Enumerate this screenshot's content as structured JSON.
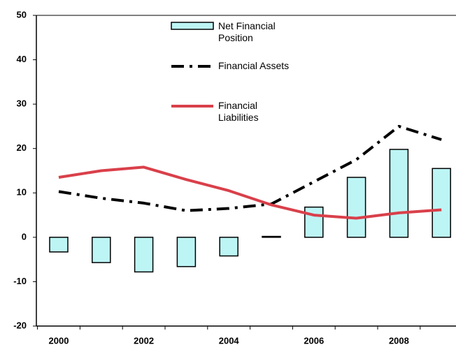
{
  "chart_data": {
    "type": "bar",
    "categories": [
      "2000",
      null,
      "2002",
      null,
      "2004",
      null,
      "2006",
      null,
      "2008",
      null
    ],
    "series": [
      {
        "name": "Net Financial Position",
        "type": "bar",
        "color": "#bdf5f5",
        "values": [
          -3.3,
          -5.7,
          -7.8,
          -6.6,
          -4.2,
          0.2,
          6.8,
          13.5,
          19.8,
          15.5
        ]
      },
      {
        "name": "Financial Assets",
        "type": "line",
        "dash": true,
        "color": "#000000",
        "values": [
          10.3,
          8.8,
          7.7,
          6.0,
          6.5,
          7.5,
          12.5,
          17.5,
          25.0,
          22.0
        ]
      },
      {
        "name": "Financial Liabilities",
        "type": "line",
        "color": "#d9404a",
        "values": [
          13.5,
          15.0,
          15.8,
          13.0,
          10.5,
          7.3,
          5.0,
          4.3,
          5.5,
          6.2
        ]
      }
    ],
    "ylim": [
      -20,
      50
    ],
    "yticks": [
      -20,
      -10,
      0,
      10,
      20,
      30,
      40,
      50
    ]
  }
}
